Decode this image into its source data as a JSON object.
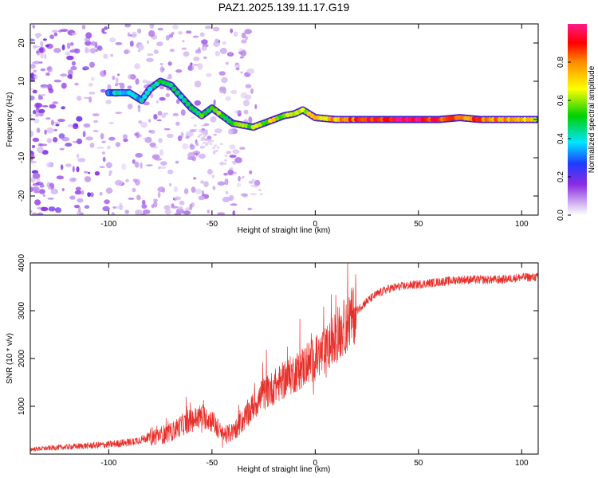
{
  "figure_title": "PAZ1.2025.139.11.17.G19",
  "colors": {
    "snr_line": "#e8302a",
    "colormap": [
      "#ffffff",
      "#8a2be2",
      "#1e3cff",
      "#00e5ff",
      "#00d000",
      "#ffff00",
      "#ff8c00",
      "#ff0000",
      "#ff1a8c"
    ]
  },
  "chart_data": [
    {
      "type": "heatmap",
      "title": "PAZ1.2025.139.11.17.G19",
      "xlabel": "Height of straight line (km)",
      "ylabel": "Frequency (Hz)",
      "xlim": [
        -138,
        108
      ],
      "ylim": [
        -25,
        25
      ],
      "xticks": [
        -100,
        -50,
        0,
        50,
        100
      ],
      "yticks": [
        -20,
        -10,
        0,
        10,
        20
      ],
      "grid": false,
      "colorbar": {
        "label": "Normalized spectral amplitude",
        "range": [
          0,
          1
        ],
        "ticks": [
          "0.0",
          "0.2",
          "0.4",
          "0.6",
          "0.8"
        ],
        "tick_values": [
          0.0,
          0.2,
          0.4,
          0.6,
          0.8
        ]
      },
      "ridge": {
        "description_free": true,
        "points": [
          [
            -100,
            7
          ],
          [
            -90,
            7
          ],
          [
            -84,
            5
          ],
          [
            -80,
            8
          ],
          [
            -75,
            10
          ],
          [
            -70,
            9
          ],
          [
            -65,
            6
          ],
          [
            -60,
            3
          ],
          [
            -55,
            1
          ],
          [
            -50,
            3
          ],
          [
            -45,
            1
          ],
          [
            -40,
            -1
          ],
          [
            -35,
            -1.5
          ],
          [
            -30,
            -2
          ],
          [
            -25,
            -1
          ],
          [
            -20,
            0
          ],
          [
            -15,
            1
          ],
          [
            -10,
            1.5
          ],
          [
            -6,
            2.5
          ],
          [
            -3,
            1.5
          ],
          [
            0,
            0.5
          ],
          [
            10,
            0
          ],
          [
            20,
            0
          ],
          [
            40,
            0
          ],
          [
            60,
            0
          ],
          [
            70,
            0.5
          ],
          [
            80,
            0
          ],
          [
            100,
            0
          ],
          [
            108,
            0
          ]
        ],
        "amplitudes": [
          0.35,
          0.4,
          0.35,
          0.4,
          0.45,
          0.4,
          0.45,
          0.5,
          0.55,
          0.5,
          0.55,
          0.55,
          0.6,
          0.55,
          0.6,
          0.65,
          0.6,
          0.65,
          0.6,
          0.65,
          0.7,
          0.75,
          0.85,
          0.95,
          0.9,
          0.8,
          0.85,
          0.7,
          0.65
        ]
      }
    },
    {
      "type": "line",
      "xlabel": "Height of straight line (km)",
      "ylabel": "SNR (10 * v/v)",
      "xlim": [
        -138,
        108
      ],
      "ylim": [
        0,
        4000
      ],
      "xticks": [
        -100,
        -50,
        0,
        50,
        100
      ],
      "yticks": [
        1000,
        2000,
        3000,
        4000
      ],
      "grid": false,
      "series": [
        {
          "x": [
            -138,
            -120,
            -100,
            -90,
            -80,
            -70,
            -65,
            -60,
            -55,
            -50,
            -45,
            -40,
            -35,
            -30,
            -25,
            -20,
            -15,
            -10,
            -5,
            0,
            5,
            10,
            15,
            20,
            25,
            30,
            35,
            40,
            50,
            60,
            70,
            80,
            90,
            100,
            108
          ],
          "values": [
            100,
            150,
            200,
            250,
            350,
            450,
            600,
            700,
            800,
            700,
            400,
            450,
            700,
            1000,
            1250,
            1400,
            1550,
            1700,
            1850,
            2000,
            2150,
            2450,
            2700,
            3000,
            3200,
            3350,
            3450,
            3500,
            3550,
            3600,
            3650,
            3650,
            3650,
            3700,
            3700
          ]
        }
      ]
    }
  ]
}
